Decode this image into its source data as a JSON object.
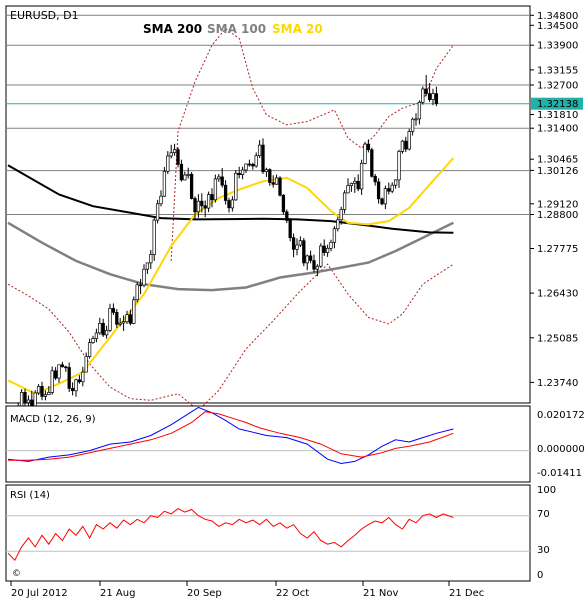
{
  "chart_data": {
    "type": "candlestick",
    "title": "EURUSD, D1",
    "legend": [
      {
        "label": "SMA 200",
        "color": "#000000"
      },
      {
        "label": "SMA 100",
        "color": "#808080"
      },
      {
        "label": "SMA 20",
        "color": "#ffd700"
      }
    ],
    "price_axis": {
      "range": [
        1.2315,
        1.3505
      ],
      "ticks": [
        "1.34800",
        "1.34500",
        "1.33900",
        "1.33155",
        "1.32700",
        "1.31810",
        "1.31400",
        "1.30465",
        "1.30126",
        "1.29120",
        "1.28800",
        "1.27775",
        "1.26430",
        "1.25085",
        "1.23740"
      ],
      "levels": [
        1.348,
        1.339,
        1.327,
        1.314,
        1.3012,
        1.288
      ],
      "current_price": "1.32138",
      "current_value": 1.32138
    },
    "x_labels": [
      "20 Jul 2012",
      "21 Aug",
      "20 Sep",
      "22 Oct",
      "21 Nov",
      "21 Dec"
    ],
    "sma200": [
      [
        0,
        1.3028
      ],
      [
        15,
        1.294
      ],
      [
        25,
        1.2905
      ],
      [
        35,
        1.2887
      ],
      [
        45,
        1.2869
      ],
      [
        55,
        1.2865
      ],
      [
        65,
        1.2866
      ],
      [
        75,
        1.2867
      ],
      [
        85,
        1.2865
      ],
      [
        95,
        1.286
      ],
      [
        105,
        1.2848
      ],
      [
        113,
        1.2837
      ],
      [
        124,
        1.2826
      ],
      [
        131,
        1.2825
      ]
    ],
    "sma100": [
      [
        0,
        1.2855
      ],
      [
        10,
        1.2795
      ],
      [
        20,
        1.274
      ],
      [
        30,
        1.27
      ],
      [
        40,
        1.267
      ],
      [
        50,
        1.2655
      ],
      [
        60,
        1.2652
      ],
      [
        70,
        1.266
      ],
      [
        80,
        1.269
      ],
      [
        90,
        1.2705
      ],
      [
        98,
        1.272
      ],
      [
        106,
        1.2735
      ],
      [
        114,
        1.277
      ],
      [
        122,
        1.281
      ],
      [
        131,
        1.2855
      ]
    ],
    "sma20": [
      [
        0,
        1.238
      ],
      [
        8,
        1.234
      ],
      [
        15,
        1.237
      ],
      [
        22,
        1.2405
      ],
      [
        30,
        1.251
      ],
      [
        40,
        1.264
      ],
      [
        48,
        1.2785
      ],
      [
        55,
        1.288
      ],
      [
        62,
        1.293
      ],
      [
        68,
        1.2955
      ],
      [
        75,
        1.298
      ],
      [
        82,
        1.299
      ],
      [
        88,
        1.296
      ],
      [
        95,
        1.289
      ],
      [
        100,
        1.2855
      ],
      [
        106,
        1.285
      ],
      [
        112,
        1.286
      ],
      [
        118,
        1.29
      ],
      [
        124,
        1.297
      ],
      [
        131,
        1.305
      ]
    ],
    "bb_upper": [
      [
        48,
        1.274
      ],
      [
        50,
        1.313
      ],
      [
        55,
        1.328
      ],
      [
        60,
        1.339
      ],
      [
        64,
        1.344
      ],
      [
        68,
        1.341
      ],
      [
        72,
        1.326
      ],
      [
        76,
        1.318
      ],
      [
        82,
        1.315
      ],
      [
        88,
        1.316
      ],
      [
        96,
        1.3195
      ],
      [
        100,
        1.311
      ],
      [
        104,
        1.308
      ],
      [
        108,
        1.312
      ],
      [
        112,
        1.3175
      ],
      [
        116,
        1.32
      ],
      [
        122,
        1.322
      ],
      [
        126,
        1.332
      ],
      [
        131,
        1.339
      ]
    ],
    "bb_lower": [
      [
        0,
        1.267
      ],
      [
        6,
        1.2635
      ],
      [
        12,
        1.2595
      ],
      [
        18,
        1.2525
      ],
      [
        24,
        1.243
      ],
      [
        30,
        1.236
      ],
      [
        36,
        1.2325
      ],
      [
        42,
        1.232
      ],
      [
        50,
        1.234
      ],
      [
        56,
        1.229
      ],
      [
        62,
        1.235
      ],
      [
        70,
        1.2475
      ],
      [
        78,
        1.256
      ],
      [
        86,
        1.265
      ],
      [
        94,
        1.273
      ],
      [
        100,
        1.264
      ],
      [
        106,
        1.257
      ],
      [
        112,
        1.255
      ],
      [
        116,
        1.258
      ],
      [
        122,
        1.267
      ],
      [
        131,
        1.273
      ]
    ],
    "candles": {
      "open": [
        1.2263,
        1.2262,
        1.2241,
        1.2294,
        1.23,
        1.2344,
        1.2313,
        1.2321,
        1.2297,
        1.2342,
        1.2362,
        1.2332,
        1.2337,
        1.2344,
        1.2409,
        1.2387,
        1.2427,
        1.2421,
        1.2419,
        1.2356,
        1.2349,
        1.2382,
        1.2376,
        1.2405,
        1.2452,
        1.2494,
        1.2506,
        1.2523,
        1.2552,
        1.2517,
        1.2531,
        1.2597,
        1.2585,
        1.2549,
        1.2553,
        1.2557,
        1.2578,
        1.2552,
        1.2623,
        1.2668,
        1.2667,
        1.2715,
        1.2734,
        1.2759,
        1.2863,
        1.2912,
        1.2935,
        1.301,
        1.3056,
        1.3066,
        1.3075,
        1.3031,
        1.2984,
        1.2999,
        1.3001,
        1.2928,
        1.2888,
        1.292,
        1.2906,
        1.2899,
        1.294,
        1.2924,
        1.2987,
        1.2993,
        1.2968,
        1.2922,
        1.29,
        1.2924,
        1.3004,
        1.3,
        1.3014,
        1.3032,
        1.3031,
        1.3026,
        1.3057,
        1.3089,
        1.3009,
        1.3015,
        1.2976,
        1.2971,
        1.299,
        1.2938,
        1.2888,
        1.2862,
        1.281,
        1.2775,
        1.2788,
        1.2801,
        1.2734,
        1.2755,
        1.2741,
        1.2715,
        1.2724,
        1.2785,
        1.2765,
        1.2778,
        1.2796,
        1.2837,
        1.2864,
        1.2895,
        1.2945,
        1.2967,
        1.2974,
        1.298,
        1.2957,
        1.3034,
        1.3092,
        1.3075,
        1.2995,
        1.2978,
        1.2927,
        1.2912,
        1.2958,
        1.295,
        1.2968,
        1.2984,
        1.307,
        1.3101,
        1.3077,
        1.313,
        1.3167,
        1.3168,
        1.3218,
        1.3258,
        1.3244,
        1.3226,
        1.3244
      ],
      "high": [
        1.2284,
        1.227,
        1.2298,
        1.2314,
        1.2354,
        1.2355,
        1.2335,
        1.2349,
        1.2351,
        1.2369,
        1.2376,
        1.235,
        1.2363,
        1.2422,
        1.242,
        1.2427,
        1.2436,
        1.2424,
        1.2434,
        1.2374,
        1.2385,
        1.2396,
        1.2421,
        1.2464,
        1.2506,
        1.2514,
        1.2536,
        1.2569,
        1.2566,
        1.2545,
        1.2611,
        1.2612,
        1.2595,
        1.2568,
        1.2576,
        1.259,
        1.2593,
        1.2633,
        1.2676,
        1.2686,
        1.273,
        1.2735,
        1.2773,
        1.2875,
        1.2924,
        1.2953,
        1.3023,
        1.3071,
        1.309,
        1.3093,
        1.3082,
        1.3045,
        1.3009,
        1.3021,
        1.3008,
        1.2934,
        1.2941,
        1.2944,
        1.2922,
        1.2949,
        1.2959,
        1.3,
        1.3002,
        1.302,
        1.2983,
        1.293,
        1.2935,
        1.3014,
        1.3024,
        1.3024,
        1.3033,
        1.3045,
        1.3036,
        1.3067,
        1.3104,
        1.3109,
        1.3021,
        1.3019,
        1.2998,
        1.3,
        1.2995,
        1.2941,
        1.2895,
        1.2869,
        1.2823,
        1.2808,
        1.2814,
        1.2809,
        1.2759,
        1.2771,
        1.2759,
        1.273,
        1.2793,
        1.2805,
        1.2789,
        1.2804,
        1.2845,
        1.2873,
        1.2903,
        1.2953,
        1.2989,
        1.2976,
        1.2992,
        1.3001,
        1.3045,
        1.3099,
        1.3106,
        1.3081,
        1.3002,
        1.2989,
        1.2931,
        1.2967,
        1.2976,
        1.2977,
        1.2986,
        1.3075,
        1.3105,
        1.3114,
        1.3138,
        1.3172,
        1.3185,
        1.3224,
        1.3266,
        1.33,
        1.3276,
        1.3259,
        1.3265
      ],
      "low": [
        1.2233,
        1.2224,
        1.223,
        1.2285,
        1.2299,
        1.23,
        1.23,
        1.2291,
        1.2285,
        1.2336,
        1.232,
        1.232,
        1.2337,
        1.2337,
        1.2381,
        1.2373,
        1.2419,
        1.2406,
        1.2345,
        1.2335,
        1.2331,
        1.237,
        1.2362,
        1.2404,
        1.2446,
        1.249,
        1.2495,
        1.2517,
        1.2511,
        1.2506,
        1.2526,
        1.2577,
        1.2538,
        1.2543,
        1.2529,
        1.255,
        1.2546,
        1.2549,
        1.2615,
        1.264,
        1.2661,
        1.2701,
        1.2716,
        1.274,
        1.2853,
        1.2904,
        1.2933,
        1.3002,
        1.3049,
        1.3057,
        1.3022,
        1.2979,
        1.2983,
        1.2988,
        1.2925,
        1.2867,
        1.287,
        1.2886,
        1.2872,
        1.2887,
        1.2902,
        1.2916,
        1.2978,
        1.2961,
        1.291,
        1.2886,
        1.2889,
        1.2921,
        1.2989,
        1.2986,
        1.3005,
        1.3024,
        1.3015,
        1.3021,
        1.305,
        1.3002,
        1.2993,
        1.2966,
        1.2961,
        1.2969,
        1.2934,
        1.2879,
        1.2854,
        1.2799,
        1.2751,
        1.2757,
        1.2782,
        1.2724,
        1.2712,
        1.2733,
        1.2705,
        1.2694,
        1.2719,
        1.2755,
        1.2752,
        1.2769,
        1.2778,
        1.2829,
        1.2849,
        1.2883,
        1.2943,
        1.2948,
        1.2945,
        1.295,
        1.2939,
        1.3031,
        1.3067,
        1.2991,
        1.2967,
        1.2913,
        1.2908,
        1.2896,
        1.294,
        1.2944,
        1.2958,
        1.296,
        1.3063,
        1.3068,
        1.3073,
        1.3118,
        1.3147,
        1.3151,
        1.3211,
        1.3236,
        1.3219,
        1.3209,
        1.3206
      ],
      "close": [
        1.2262,
        1.2241,
        1.2294,
        1.23,
        1.2344,
        1.2313,
        1.2321,
        1.2297,
        1.2342,
        1.2362,
        1.2332,
        1.2337,
        1.2344,
        1.2409,
        1.2387,
        1.2427,
        1.2421,
        1.2419,
        1.2356,
        1.2349,
        1.2382,
        1.2376,
        1.2405,
        1.2452,
        1.2494,
        1.2506,
        1.2523,
        1.2552,
        1.2517,
        1.2531,
        1.2597,
        1.2585,
        1.2549,
        1.2553,
        1.2557,
        1.2578,
        1.2552,
        1.2623,
        1.2668,
        1.2667,
        1.2715,
        1.2734,
        1.2759,
        1.2863,
        1.2912,
        1.2935,
        1.301,
        1.3056,
        1.3066,
        1.3075,
        1.3031,
        1.2984,
        1.2999,
        1.3001,
        1.2928,
        1.2888,
        1.292,
        1.2906,
        1.2899,
        1.294,
        1.2924,
        1.2987,
        1.2993,
        1.2968,
        1.2922,
        1.29,
        1.2924,
        1.3004,
        1.3,
        1.3014,
        1.3032,
        1.3031,
        1.3026,
        1.3057,
        1.3089,
        1.3009,
        1.3015,
        1.2976,
        1.2971,
        1.299,
        1.2938,
        1.2888,
        1.2862,
        1.281,
        1.2775,
        1.2788,
        1.2801,
        1.2734,
        1.2755,
        1.2741,
        1.2715,
        1.2724,
        1.2785,
        1.2765,
        1.2778,
        1.2796,
        1.2837,
        1.2864,
        1.2895,
        1.2945,
        1.2967,
        1.2974,
        1.298,
        1.2957,
        1.3034,
        1.3092,
        1.3075,
        1.2995,
        1.2978,
        1.2927,
        1.2912,
        1.2958,
        1.295,
        1.2968,
        1.2984,
        1.307,
        1.3101,
        1.3077,
        1.313,
        1.3167,
        1.3168,
        1.3218,
        1.3258,
        1.3244,
        1.3226,
        1.3244,
        1.3214
      ]
    },
    "macd": {
      "title": "MACD (12, 26, 9)",
      "ticks": [
        "0.020172",
        "0.000000",
        "-0.01411"
      ],
      "range": [
        -0.0141,
        0.0202
      ],
      "macd_line": [
        [
          0,
          -0.004
        ],
        [
          6,
          -0.005
        ],
        [
          12,
          -0.003
        ],
        [
          18,
          -0.002
        ],
        [
          24,
          0.0
        ],
        [
          30,
          0.003
        ],
        [
          36,
          0.004
        ],
        [
          42,
          0.007
        ],
        [
          48,
          0.012
        ],
        [
          52,
          0.016
        ],
        [
          56,
          0.02
        ],
        [
          60,
          0.0175
        ],
        [
          64,
          0.014
        ],
        [
          68,
          0.01
        ],
        [
          72,
          0.0085
        ],
        [
          76,
          0.007
        ],
        [
          82,
          0.006
        ],
        [
          88,
          0.003
        ],
        [
          94,
          -0.004
        ],
        [
          98,
          -0.006
        ],
        [
          102,
          -0.005
        ],
        [
          106,
          -0.002
        ],
        [
          110,
          0.002
        ],
        [
          114,
          0.005
        ],
        [
          118,
          0.004
        ],
        [
          122,
          0.006
        ],
        [
          126,
          0.008
        ],
        [
          131,
          0.01
        ]
      ],
      "signal_line": [
        [
          0,
          -0.0045
        ],
        [
          6,
          -0.0045
        ],
        [
          12,
          -0.004
        ],
        [
          18,
          -0.003
        ],
        [
          24,
          -0.001
        ],
        [
          30,
          0.001
        ],
        [
          36,
          0.003
        ],
        [
          42,
          0.005
        ],
        [
          48,
          0.008
        ],
        [
          54,
          0.013
        ],
        [
          58,
          0.018
        ],
        [
          62,
          0.017
        ],
        [
          66,
          0.015
        ],
        [
          70,
          0.013
        ],
        [
          74,
          0.0105
        ],
        [
          80,
          0.008
        ],
        [
          86,
          0.006
        ],
        [
          92,
          0.003
        ],
        [
          98,
          -0.0015
        ],
        [
          104,
          -0.003
        ],
        [
          110,
          -0.001
        ],
        [
          114,
          0.001
        ],
        [
          118,
          0.002
        ],
        [
          124,
          0.004
        ],
        [
          131,
          0.008
        ]
      ]
    },
    "rsi": {
      "title": "RSI (14)",
      "ticks": [
        "100",
        "70",
        "30",
        "0"
      ],
      "levels": [
        70,
        30
      ],
      "range": [
        0,
        100
      ],
      "values": [
        [
          0,
          28
        ],
        [
          2,
          20
        ],
        [
          4,
          35
        ],
        [
          6,
          45
        ],
        [
          8,
          35
        ],
        [
          10,
          48
        ],
        [
          12,
          38
        ],
        [
          14,
          50
        ],
        [
          16,
          42
        ],
        [
          18,
          55
        ],
        [
          20,
          48
        ],
        [
          22,
          58
        ],
        [
          24,
          45
        ],
        [
          26,
          60
        ],
        [
          28,
          55
        ],
        [
          30,
          62
        ],
        [
          32,
          56
        ],
        [
          34,
          65
        ],
        [
          36,
          60
        ],
        [
          38,
          66
        ],
        [
          40,
          62
        ],
        [
          42,
          70
        ],
        [
          44,
          68
        ],
        [
          46,
          75
        ],
        [
          48,
          72
        ],
        [
          50,
          78
        ],
        [
          52,
          74
        ],
        [
          54,
          77
        ],
        [
          56,
          70
        ],
        [
          58,
          66
        ],
        [
          60,
          64
        ],
        [
          62,
          58
        ],
        [
          64,
          62
        ],
        [
          66,
          60
        ],
        [
          68,
          66
        ],
        [
          70,
          62
        ],
        [
          72,
          65
        ],
        [
          74,
          60
        ],
        [
          76,
          66
        ],
        [
          78,
          58
        ],
        [
          80,
          62
        ],
        [
          82,
          56
        ],
        [
          84,
          60
        ],
        [
          86,
          50
        ],
        [
          88,
          45
        ],
        [
          90,
          52
        ],
        [
          92,
          42
        ],
        [
          94,
          38
        ],
        [
          96,
          40
        ],
        [
          98,
          35
        ],
        [
          100,
          42
        ],
        [
          102,
          48
        ],
        [
          104,
          55
        ],
        [
          106,
          60
        ],
        [
          108,
          64
        ],
        [
          110,
          62
        ],
        [
          112,
          68
        ],
        [
          114,
          60
        ],
        [
          116,
          55
        ],
        [
          118,
          66
        ],
        [
          120,
          62
        ],
        [
          122,
          70
        ],
        [
          124,
          72
        ],
        [
          126,
          68
        ],
        [
          128,
          72
        ],
        [
          131,
          68
        ]
      ]
    },
    "watermark": "©"
  }
}
